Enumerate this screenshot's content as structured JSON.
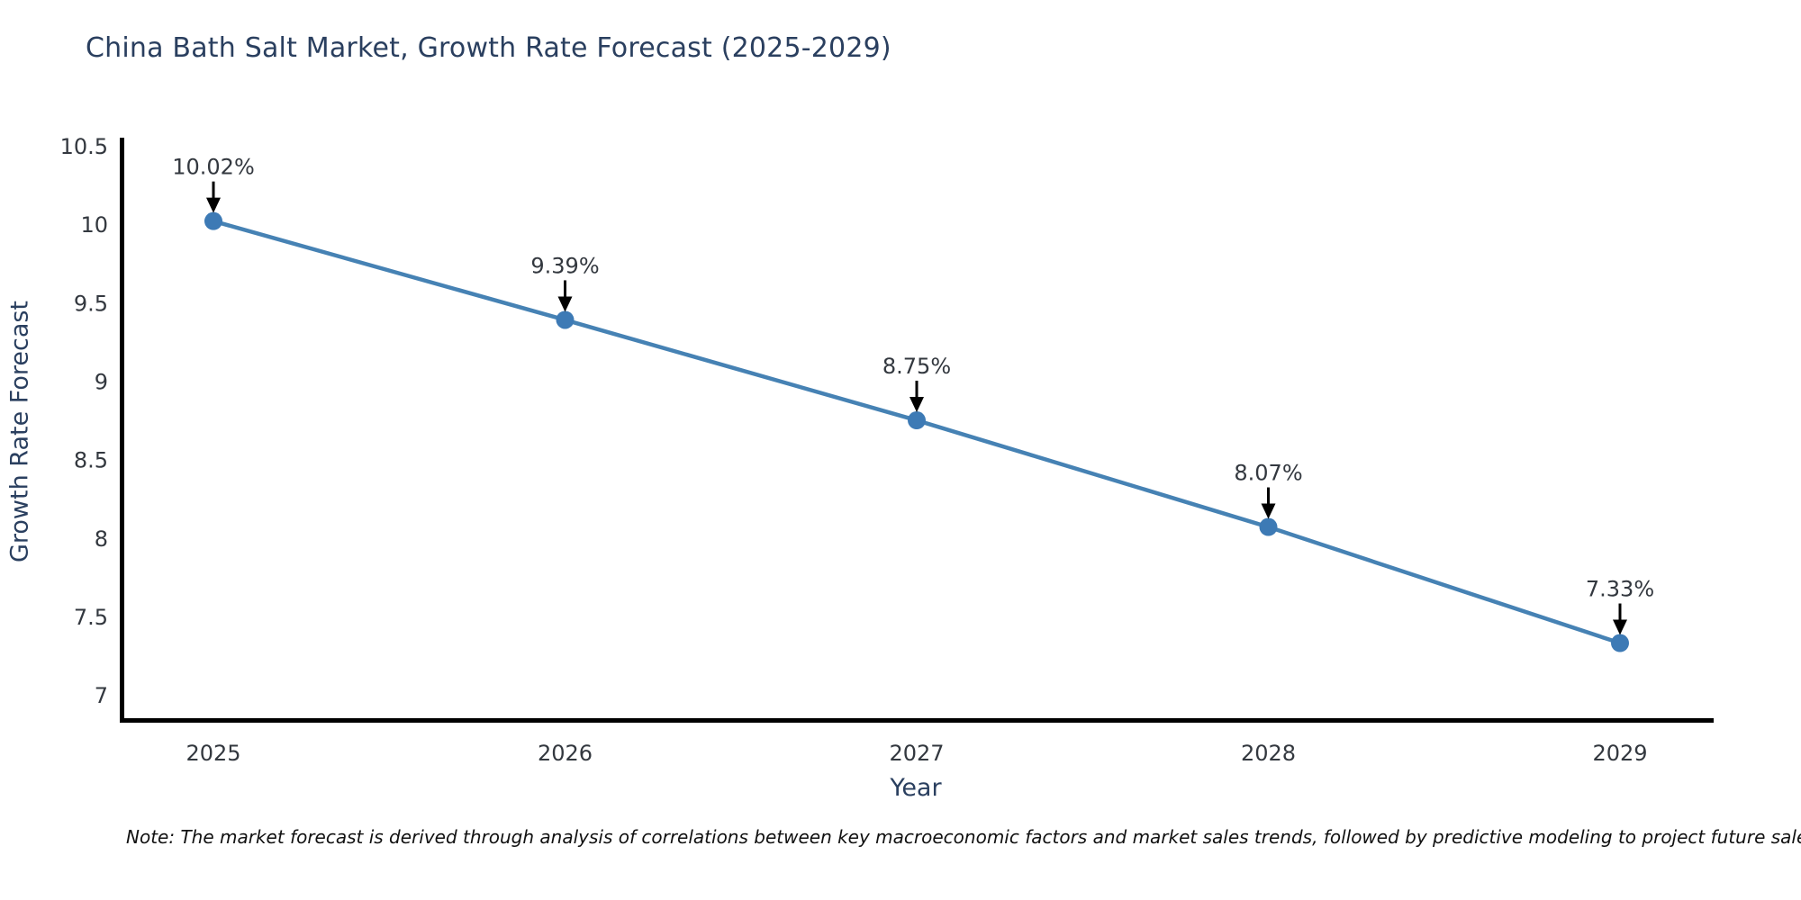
{
  "chart_data": {
    "type": "line",
    "title": "China Bath Salt Market, Growth Rate Forecast (2025-2029)",
    "xlabel": "Year",
    "ylabel": "Growth Rate Forecast",
    "x": [
      2025,
      2026,
      2027,
      2028,
      2029
    ],
    "series": [
      {
        "name": "Growth Rate Forecast",
        "values": [
          10.02,
          9.39,
          8.75,
          8.07,
          7.33
        ],
        "point_labels": [
          "10.02%",
          "9.39%",
          "8.75%",
          "8.07%",
          "7.33%"
        ]
      }
    ],
    "yticks": [
      10.5,
      10,
      9.5,
      9,
      8.5,
      8,
      7.5,
      7
    ],
    "ylim": [
      6.83,
      10.5
    ],
    "grid": false,
    "legend_position": "none",
    "line_color": "#4682b4",
    "marker_color": "#3d7ab5",
    "axis_color": "#000000",
    "annotation_arrow_color": "#000000",
    "note": "Note: The market forecast is derived through analysis of correlations between key macroeconomic factors and market sales trends, followed by predictive modeling to project future sales."
  }
}
